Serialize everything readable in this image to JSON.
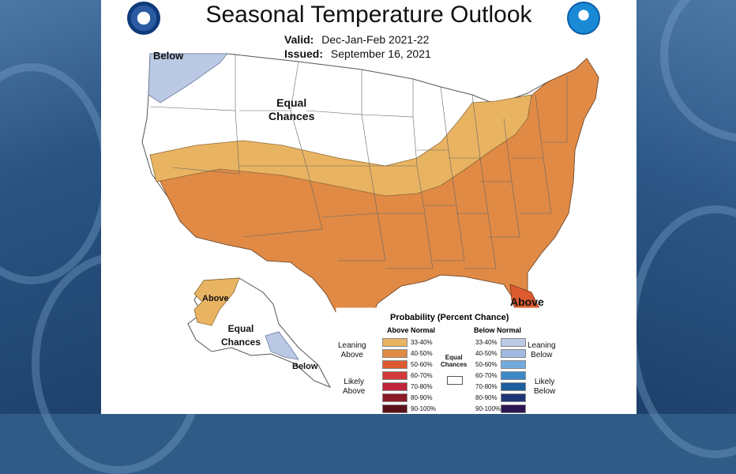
{
  "title": "Seasonal Temperature Outlook",
  "valid_label": "Valid:",
  "valid_value": "Dec-Jan-Feb 2021-22",
  "issued_label": "Issued:",
  "issued_value": "September 16, 2021",
  "map_labels": {
    "below_nw": "Below",
    "equal_chances": "Equal\nChances",
    "above_se": "Above",
    "ak_above": "Above",
    "ak_equal": "Equal\nChances",
    "ak_below": "Below"
  },
  "legend": {
    "title": "Probability (Percent Chance)",
    "above_header": "Above Normal",
    "below_header": "Below Normal",
    "equal_label": "Equal\nChances",
    "leaning_above": "Leaning\nAbove",
    "likely_above": "Likely\nAbove",
    "leaning_below": "Leaning\nBelow",
    "likely_below": "Likely\nBelow",
    "above_bins": [
      {
        "label": "33-40%",
        "color": "#e9b462"
      },
      {
        "label": "40-50%",
        "color": "#e08a45"
      },
      {
        "label": "50-60%",
        "color": "#dc5a2e"
      },
      {
        "label": "60-70%",
        "color": "#d43a3a"
      },
      {
        "label": "70-80%",
        "color": "#c0253a"
      },
      {
        "label": "80-90%",
        "color": "#8c1b26"
      },
      {
        "label": "90-100%",
        "color": "#5a1218"
      }
    ],
    "below_bins": [
      {
        "label": "33-40%",
        "color": "#bcc9e4"
      },
      {
        "label": "40-50%",
        "color": "#9fb9e0"
      },
      {
        "label": "50-60%",
        "color": "#74a9dd"
      },
      {
        "label": "60-70%",
        "color": "#3f88c8"
      },
      {
        "label": "70-80%",
        "color": "#1c5e9e"
      },
      {
        "label": "80-90%",
        "color": "#1f3674"
      },
      {
        "label": "90-100%",
        "color": "#2a1553"
      }
    ]
  },
  "colors": {
    "leaning_above": "#e9b462",
    "likely_above_40_50": "#e08a45",
    "above_50_60": "#dc5a2e",
    "leaning_below": "#bcc9e4",
    "equal": "#ffffff"
  },
  "logos": [
    "commerce-seal",
    "noaa-logo"
  ]
}
